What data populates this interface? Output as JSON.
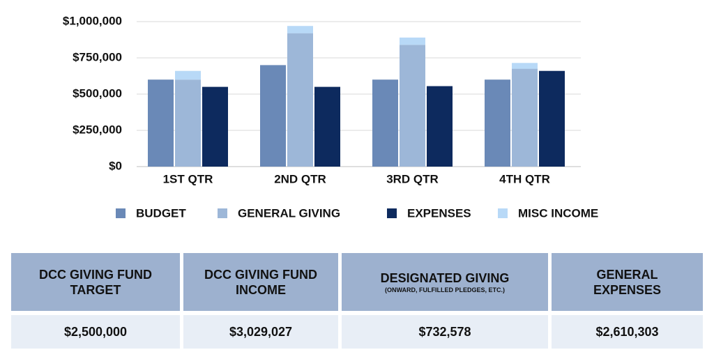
{
  "chart_data": {
    "type": "bar",
    "categories": [
      "1ST QTR",
      "2ND QTR",
      "3RD QTR",
      "4TH QTR"
    ],
    "series": [
      {
        "name": "BUDGET",
        "color": "#6a89b7",
        "values": [
          600000,
          700000,
          600000,
          600000
        ]
      },
      {
        "name": "GENERAL GIVING",
        "color": "#9db7d8",
        "values": [
          600000,
          920000,
          840000,
          675000
        ],
        "stack": "giving"
      },
      {
        "name": "EXPENSES",
        "color": "#0d2a5e",
        "values": [
          550000,
          550000,
          555000,
          660000
        ]
      },
      {
        "name": "MISC INCOME",
        "color": "#b8d9f7",
        "values": [
          60000,
          50000,
          50000,
          40000
        ],
        "stack": "giving"
      }
    ],
    "ylim": [
      0,
      1000000
    ],
    "yticks": [
      {
        "value": 0,
        "label": "$0"
      },
      {
        "value": 250000,
        "label": "$250,000"
      },
      {
        "value": 500000,
        "label": "$500,000"
      },
      {
        "value": 750000,
        "label": "$750,000"
      },
      {
        "value": 1000000,
        "label": "$1,000,000"
      }
    ],
    "grid": true,
    "legend": "bottom"
  },
  "table": {
    "headers": [
      "DCC GIVING FUND TARGET",
      "DCC GIVING FUND INCOME",
      "DESIGNATED GIVING",
      "GENERAL EXPENSES"
    ],
    "header_note": "(ONWARD, FULFILLED PLEDGES, ETC.)",
    "rows": [
      [
        "$2,500,000",
        "$3,029,027",
        "$732,578",
        "$2,610,303"
      ]
    ]
  }
}
